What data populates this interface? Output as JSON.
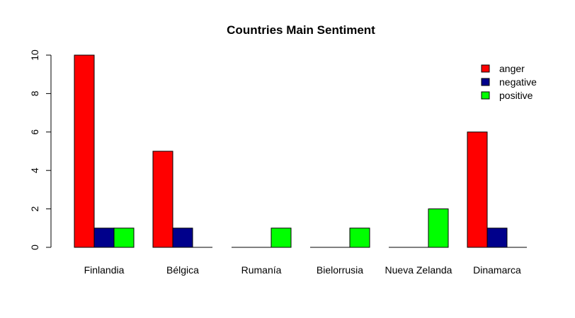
{
  "chart_data": {
    "type": "bar",
    "title": "Countries Main Sentiment",
    "xlabel": "",
    "ylabel": "",
    "ylim": [
      0,
      10
    ],
    "yticks": [
      0,
      2,
      4,
      6,
      8,
      10
    ],
    "grid": false,
    "legend_position": "top-right",
    "categories": [
      "Finlandia",
      "Bélgica",
      "Rumanía",
      "Bielorrusia",
      "Nueva Zelanda",
      "Dinamarca"
    ],
    "series": [
      {
        "name": "anger",
        "color": "#ff0000",
        "values": [
          10,
          5,
          0,
          0,
          0,
          6
        ]
      },
      {
        "name": "negative",
        "color": "#00008b",
        "values": [
          1,
          1,
          0,
          0,
          0,
          1
        ]
      },
      {
        "name": "positive",
        "color": "#00ff00",
        "values": [
          1,
          0,
          1,
          1,
          2,
          0
        ]
      }
    ]
  }
}
